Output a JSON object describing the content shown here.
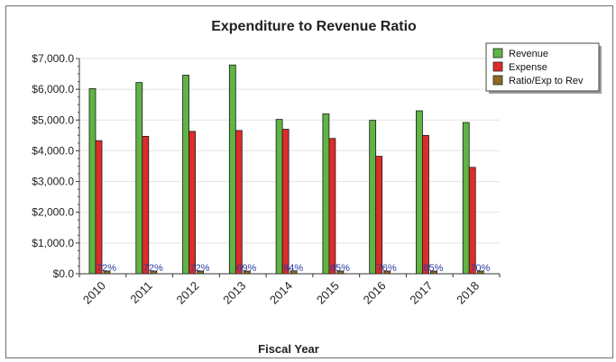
{
  "chart_data": {
    "type": "bar",
    "title": "Expenditure to Revenue Ratio",
    "xlabel": "Fiscal Year",
    "ylabel": "",
    "categories": [
      "2010",
      "2011",
      "2012",
      "2013",
      "2014",
      "2015",
      "2016",
      "2017",
      "2018"
    ],
    "ylim": [
      0,
      7000
    ],
    "yticks": [
      0,
      1000,
      2000,
      3000,
      4000,
      5000,
      6000,
      7000
    ],
    "ytick_labels": [
      "$0.0",
      "$1,000.0",
      "$2,000.0",
      "$3,000.0",
      "$4,000.0",
      "$5,000.0",
      "$6,000.0",
      "$7,000.0"
    ],
    "grid": true,
    "legend_position": "top-right",
    "series": [
      {
        "name": "Revenue",
        "color": "#5fb443",
        "values": [
          6020,
          6220,
          6460,
          6790,
          5020,
          5200,
          4990,
          5300,
          4920
        ]
      },
      {
        "name": "Expense",
        "color": "#e02b2b",
        "values": [
          4330,
          4470,
          4630,
          4660,
          4700,
          4400,
          3820,
          4500,
          3460
        ]
      },
      {
        "name": "Ratio/Exp to Rev",
        "color": "#8b6b1f",
        "values": [
          72,
          72,
          72,
          69,
          94,
          85,
          76,
          85,
          70
        ],
        "labels": [
          "72%",
          "72%",
          "72%",
          "69%",
          "94%",
          "85%",
          "76%",
          "85%",
          "70%"
        ]
      }
    ]
  }
}
